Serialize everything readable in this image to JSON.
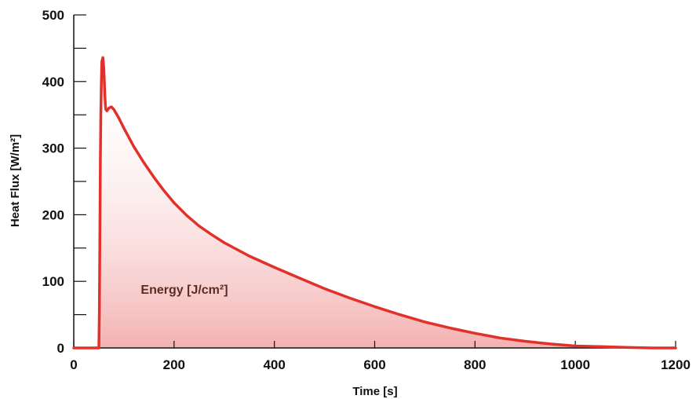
{
  "chart_data": {
    "type": "area",
    "title": "",
    "xlabel": "Time [s]",
    "ylabel": "Heat Flux [W/m²]",
    "xlim": [
      0,
      1200
    ],
    "ylim": [
      0,
      500
    ],
    "xticks": [
      0,
      200,
      400,
      600,
      800,
      1000,
      1200
    ],
    "yticks": [
      0,
      100,
      200,
      300,
      400,
      500
    ],
    "grid": false,
    "annotation": "Energy [J/cm²]",
    "colors": {
      "line": "#e2302a",
      "fill": "#f2a9a9",
      "annotation": "#5a2d22",
      "axis": "#111111"
    },
    "series": [
      {
        "x": [
          0,
          50,
          51,
          52,
          53,
          54,
          55,
          56,
          58,
          60,
          62,
          63,
          64,
          66,
          68,
          70,
          75,
          80,
          90,
          100,
          120,
          140,
          160,
          180,
          200,
          225,
          250,
          275,
          300,
          350,
          400,
          450,
          500,
          550,
          600,
          650,
          700,
          750,
          800,
          850,
          900,
          950,
          1000,
          1050,
          1100,
          1150,
          1200
        ],
        "y": [
          0,
          0,
          50,
          150,
          280,
          350,
          400,
          430,
          436,
          420,
          380,
          365,
          358,
          356,
          358,
          360,
          362,
          358,
          345,
          330,
          302,
          278,
          256,
          236,
          218,
          199,
          183,
          170,
          158,
          138,
          121,
          105,
          89,
          75,
          62,
          50,
          39,
          30,
          22,
          15,
          10,
          6,
          3,
          2,
          1,
          0,
          0
        ]
      }
    ]
  }
}
